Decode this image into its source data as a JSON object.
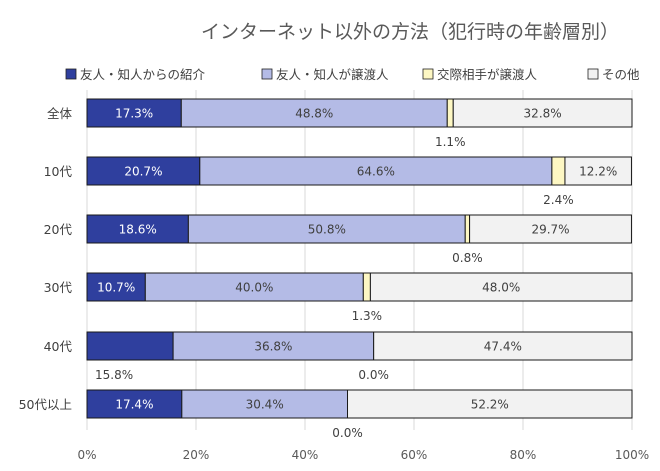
{
  "chart_data": {
    "type": "bar",
    "orientation": "horizontal",
    "stacked": true,
    "percent": true,
    "title": "インターネット以外の方法（犯行時の年齢層別）",
    "xlabel": "",
    "ylabel": "",
    "xlim": [
      0,
      100
    ],
    "x_ticks": [
      "0%",
      "20%",
      "40%",
      "60%",
      "80%",
      "100%"
    ],
    "grid": true,
    "legend": "top",
    "categories": [
      "全体",
      "10代",
      "20代",
      "30代",
      "40代",
      "50代以上"
    ],
    "series": [
      {
        "name": "友人・知人からの紹介",
        "color": "#2f3f9e",
        "values": [
          17.3,
          20.7,
          18.6,
          10.7,
          15.8,
          17.4
        ],
        "labels": [
          "17.3%",
          "20.7%",
          "18.6%",
          "10.7%",
          "15.8%",
          "17.4%"
        ]
      },
      {
        "name": "友人・知人が譲渡人",
        "color": "#b4bbe6",
        "values": [
          48.8,
          64.6,
          50.8,
          40.0,
          36.8,
          30.4
        ],
        "labels": [
          "48.8%",
          "64.6%",
          "50.8%",
          "40.0%",
          "36.8%",
          "30.4%"
        ]
      },
      {
        "name": "交際相手が譲渡人",
        "color": "#fdf7c3",
        "values": [
          1.1,
          2.4,
          0.8,
          1.3,
          0.0,
          0.0
        ],
        "labels": [
          "1.1%",
          "2.4%",
          "0.8%",
          "1.3%",
          "0.0%",
          "0.0%"
        ]
      },
      {
        "name": "その他",
        "color": "#f2f2f2",
        "values": [
          32.8,
          12.2,
          29.7,
          48.0,
          47.4,
          52.2
        ],
        "labels": [
          "32.8%",
          "12.2%",
          "29.7%",
          "48.0%",
          "47.4%",
          "52.2%"
        ]
      }
    ]
  }
}
